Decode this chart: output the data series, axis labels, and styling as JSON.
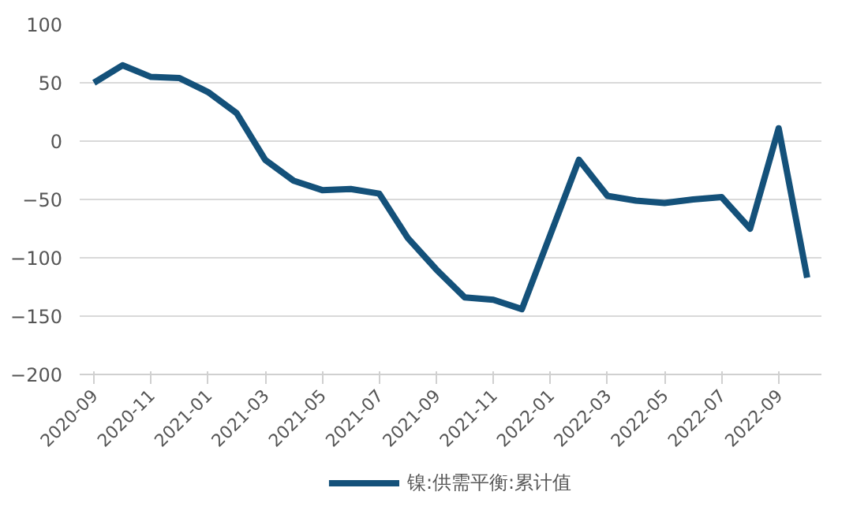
{
  "chart_data": {
    "type": "line",
    "categories": [
      "2020-09",
      null,
      "2020-11",
      null,
      "2021-01",
      null,
      "2021-03",
      null,
      "2021-05",
      null,
      "2021-07",
      null,
      "2021-09",
      null,
      "2021-11",
      null,
      "2022-01",
      null,
      "2022-03",
      null,
      "2022-05",
      null,
      "2022-07",
      null,
      "2022-09",
      null
    ],
    "series": [
      {
        "name": "镍:供需平衡:累计值",
        "color": "#14517a",
        "values": [
          50,
          65,
          55,
          54,
          42,
          24,
          -16,
          -34,
          -42,
          -41,
          -45,
          -83,
          -110,
          -134,
          -136,
          -144,
          -80,
          -16,
          -47,
          -51,
          -53,
          -50,
          -48,
          -75,
          11,
          -117
        ]
      }
    ],
    "ylim": [
      -200,
      100
    ],
    "yticks": [
      -200,
      -150,
      -100,
      -50,
      0,
      50,
      100
    ],
    "grid": "y",
    "legend": "bottom"
  }
}
